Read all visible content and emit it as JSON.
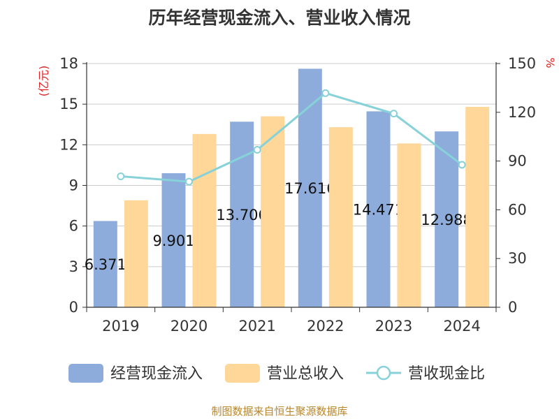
{
  "chart_data": {
    "type": "bar+line",
    "title": "历年经营现金流入、营业收入情况",
    "categories": [
      "2019",
      "2020",
      "2021",
      "2022",
      "2023",
      "2024"
    ],
    "series": [
      {
        "name": "经营现金流入",
        "type": "bar",
        "axis": "left",
        "color": "#8eacdb",
        "values": [
          6.371,
          9.901,
          13.706,
          17.616,
          14.471,
          12.988
        ],
        "labels": [
          "6.371",
          "9.901",
          "13.706",
          "17.616",
          "14.471",
          "12.988"
        ]
      },
      {
        "name": "营业总收入",
        "type": "bar",
        "axis": "left",
        "color": "#fed799",
        "values": [
          7.9,
          12.8,
          14.1,
          13.3,
          12.1,
          14.8
        ]
      },
      {
        "name": "营收现金比",
        "type": "line",
        "axis": "right",
        "color": "#87d2d9",
        "values": [
          80.6,
          77.3,
          96.9,
          131.8,
          119.2,
          87.7
        ]
      }
    ],
    "left_axis": {
      "label": "(亿元)",
      "min": 0,
      "max": 18,
      "ticks": [
        0,
        3,
        6,
        9,
        12,
        15,
        18
      ]
    },
    "right_axis": {
      "label": "%",
      "min": 0,
      "max": 150,
      "ticks": [
        0,
        30,
        60,
        90,
        120,
        150
      ]
    },
    "grid": true,
    "legend_position": "bottom"
  },
  "source": "制图数据来自恒生聚源数据库"
}
